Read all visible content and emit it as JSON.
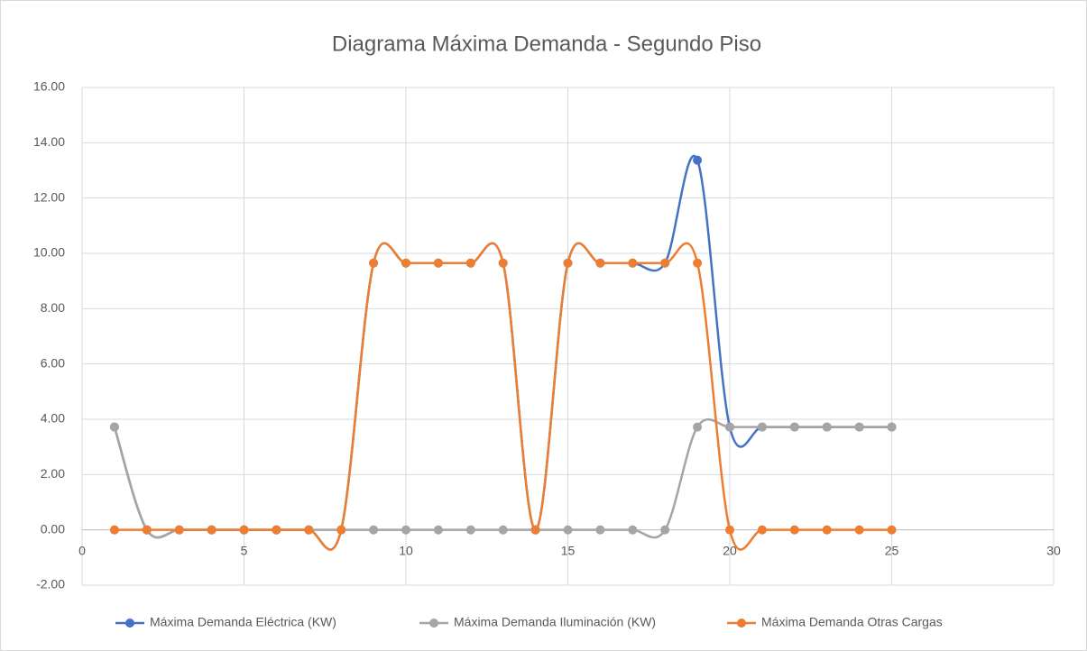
{
  "chart_data": {
    "type": "scatter_smooth",
    "title": "Diagrama Máxima Demanda - Segundo Piso",
    "x": [
      1,
      2,
      3,
      4,
      5,
      6,
      7,
      8,
      9,
      10,
      11,
      12,
      13,
      14,
      15,
      16,
      17,
      18,
      19,
      20,
      21,
      22,
      23,
      24,
      25
    ],
    "series": [
      {
        "name": "Máxima Demanda Eléctrica (KW)",
        "color": "#4472c4",
        "values": [
          3.72,
          0,
          0,
          0,
          0,
          0,
          0,
          0,
          9.65,
          9.65,
          9.65,
          9.65,
          9.65,
          0,
          9.65,
          9.65,
          9.65,
          9.65,
          13.37,
          3.72,
          3.72,
          3.72,
          3.72,
          3.72,
          3.72
        ]
      },
      {
        "name": "Máxima Demanda Iluminación (KW)",
        "color": "#a5a5a5",
        "values": [
          3.72,
          0,
          0,
          0,
          0,
          0,
          0,
          0,
          0,
          0,
          0,
          0,
          0,
          0,
          0,
          0,
          0,
          0,
          3.72,
          3.72,
          3.72,
          3.72,
          3.72,
          3.72,
          3.72
        ]
      },
      {
        "name": "Máxima Demanda Otras Cargas",
        "color": "#ed7d31",
        "values": [
          0,
          0,
          0,
          0,
          0,
          0,
          0,
          0,
          9.65,
          9.65,
          9.65,
          9.65,
          9.65,
          0,
          9.65,
          9.65,
          9.65,
          9.65,
          9.65,
          0,
          0,
          0,
          0,
          0,
          0
        ]
      }
    ],
    "xlim": [
      0,
      30
    ],
    "xticks": [
      0,
      5,
      10,
      15,
      20,
      25,
      30
    ],
    "ylim": [
      -2,
      16
    ],
    "yticks": [
      {
        "value": -2,
        "label": "-2.00"
      },
      {
        "value": 0,
        "label": "0.00"
      },
      {
        "value": 2,
        "label": "2.00"
      },
      {
        "value": 4,
        "label": "4.00"
      },
      {
        "value": 6,
        "label": "6.00"
      },
      {
        "value": 8,
        "label": "8.00"
      },
      {
        "value": 10,
        "label": "10.00"
      },
      {
        "value": 12,
        "label": "12.00"
      },
      {
        "value": 14,
        "label": "14.00"
      },
      {
        "value": 16,
        "label": "16.00"
      }
    ],
    "grid": true,
    "legend": "bottom"
  }
}
